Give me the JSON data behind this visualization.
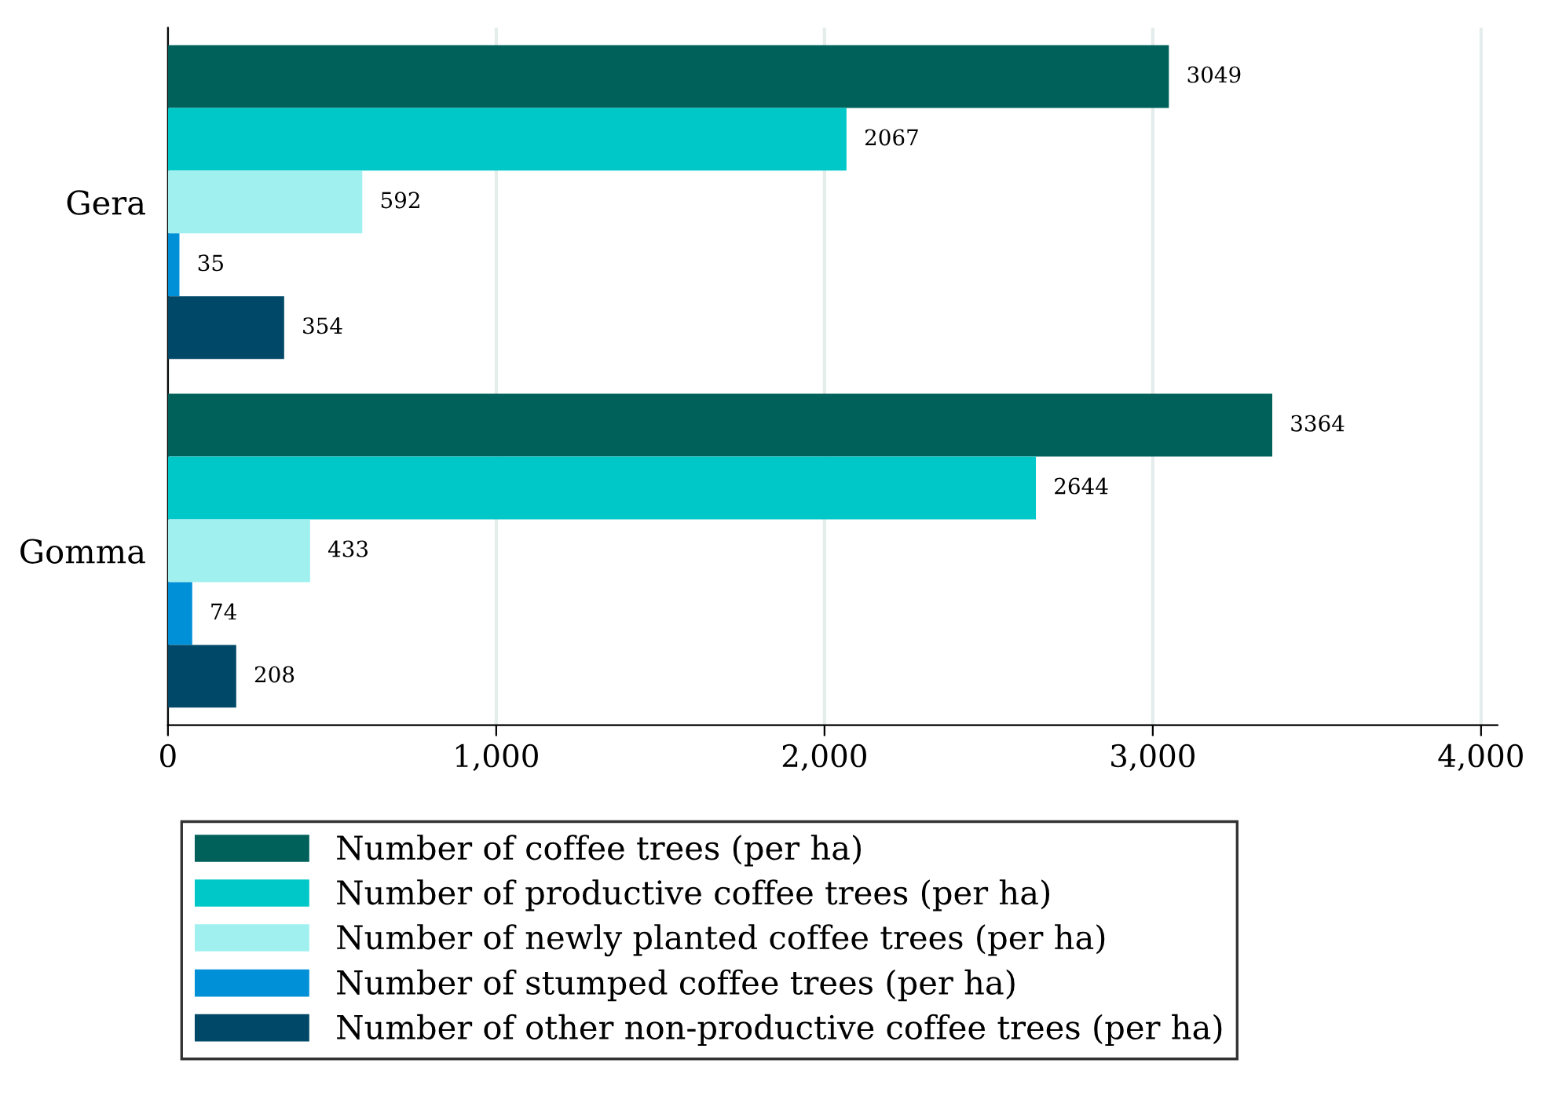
{
  "chart_data": {
    "type": "bar",
    "orientation": "horizontal",
    "categories": [
      "Gera",
      "Gomma"
    ],
    "series": [
      {
        "name": "Number of coffee trees (per ha)",
        "color": "#00605a",
        "values": [
          3049,
          3364
        ]
      },
      {
        "name": "Number of productive coffee trees (per ha)",
        "color": "#00c8c8",
        "values": [
          2067,
          2644
        ]
      },
      {
        "name": "Number of newly planted coffee trees (per ha)",
        "color": "#a0f0f0",
        "values": [
          592,
          433
        ]
      },
      {
        "name": "Number of stumped coffee trees (per ha)",
        "color": "#0090d8",
        "values": [
          35,
          74
        ]
      },
      {
        "name": "Number of other non-productive coffee trees (per ha)",
        "color": "#004868",
        "values": [
          354,
          208
        ]
      }
    ],
    "xlim": [
      0,
      4050
    ],
    "xticks": [
      0,
      {
        "value": 1000,
        "label": "1,000"
      },
      {
        "value": 2000,
        "label": "2,000"
      },
      {
        "value": 3000,
        "label": "3,000"
      },
      {
        "value": 4000,
        "label": "4,000"
      }
    ],
    "grid": "x",
    "legend": "bottom",
    "data_labels": true
  }
}
